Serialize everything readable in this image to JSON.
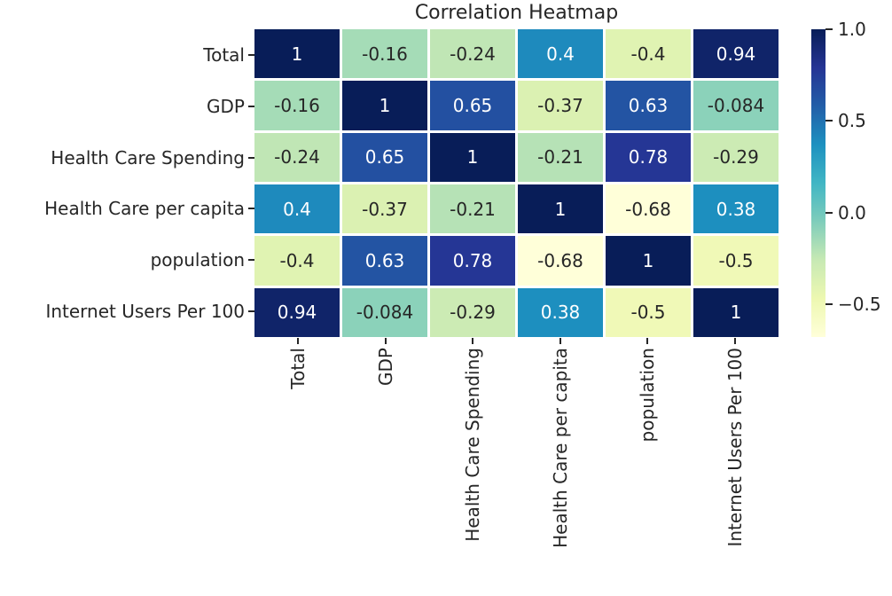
{
  "figure": {
    "background": "#ffffff",
    "text_color": "#262626"
  },
  "chart_data": {
    "type": "heatmap",
    "title": "Correlation Heatmap",
    "labels": [
      "Total",
      "GDP",
      "Health Care Spending",
      "Health Care per capita",
      "population",
      "Internet Users Per 100"
    ],
    "matrix": [
      [
        1,
        -0.16,
        -0.24,
        0.4,
        -0.4,
        0.94
      ],
      [
        -0.16,
        1,
        0.65,
        -0.37,
        0.63,
        -0.084
      ],
      [
        -0.24,
        0.65,
        1,
        -0.21,
        0.78,
        -0.29
      ],
      [
        0.4,
        -0.37,
        -0.21,
        1,
        -0.68,
        0.38
      ],
      [
        -0.4,
        0.63,
        0.78,
        -0.68,
        1,
        -0.5
      ],
      [
        0.94,
        -0.084,
        -0.29,
        0.38,
        -0.5,
        1
      ]
    ],
    "vmin": -0.68,
    "vmax": 1.0,
    "colormap": "YlGnBu",
    "colormap_stops": [
      "#ffffd9",
      "#edf8b1",
      "#c7e9b4",
      "#7fcdbb",
      "#41b6c4",
      "#1d91c0",
      "#225ea8",
      "#253494",
      "#081d58"
    ],
    "colorbar_ticks": [
      {
        "value": 1.0,
        "label": "1.0"
      },
      {
        "value": 0.5,
        "label": "0.5"
      },
      {
        "value": 0.0,
        "label": "0.0"
      },
      {
        "value": -0.5,
        "label": "−0.5"
      }
    ],
    "x_labels_rotation": 90,
    "cell_text_light": "#ffffff",
    "cell_text_dark": "#262626",
    "grid_line_color": "#ffffff",
    "legend_position": "right-colorbar",
    "grid": false
  }
}
